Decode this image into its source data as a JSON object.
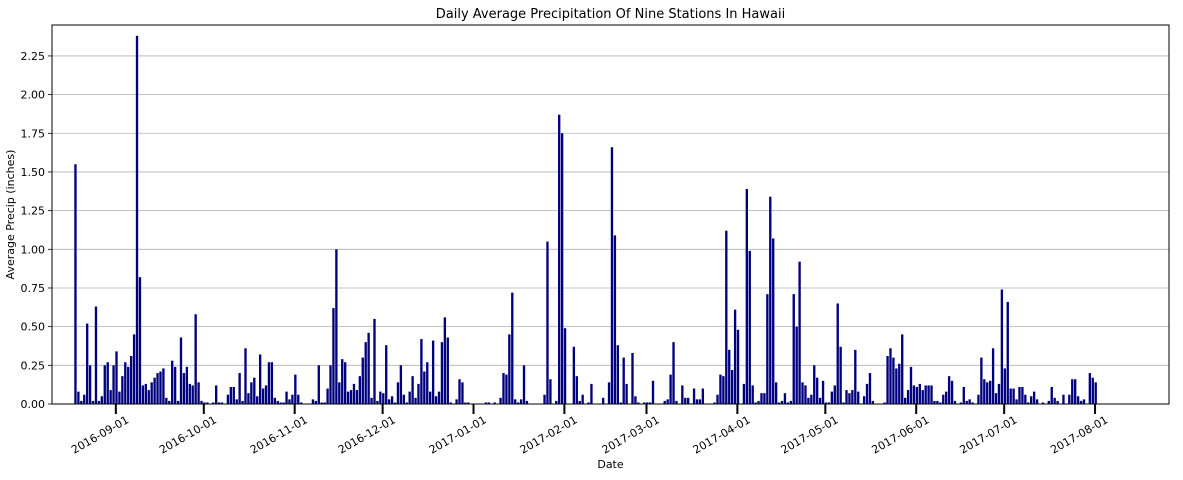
{
  "chart_data": {
    "type": "bar",
    "title": "Daily Average Precipitation Of Nine Stations In Hawaii",
    "xlabel": "Date",
    "ylabel": "Average Precip (inches)",
    "ylim": [
      0,
      2.45
    ],
    "grid": "y",
    "bar_color": "#00007f",
    "yticks": [
      "0.00",
      "0.25",
      "0.50",
      "0.75",
      "1.00",
      "1.25",
      "1.50",
      "1.75",
      "2.00",
      "2.25"
    ],
    "xtick_labels": [
      "2016-09-01",
      "2016-10-01",
      "2016-11-01",
      "2016-12-01",
      "2017-01-01",
      "2017-02-01",
      "2017-03-01",
      "2017-04-01",
      "2017-05-01",
      "2017-06-01",
      "2017-07-01",
      "2017-08-01"
    ],
    "xlim": [
      "2016-08-15",
      "2017-08-31"
    ],
    "series": [
      {
        "x_start": "2016-08-23",
        "values": [
          1.55,
          0.08,
          0.02,
          0.06,
          0.52,
          0.25,
          0.02,
          0.63,
          0.02,
          0.05,
          0.25,
          0.27,
          0.09,
          0.25,
          0.34,
          0.08,
          0.18,
          0.27,
          0.24,
          0.31,
          0.45,
          2.38,
          0.82,
          0.12,
          0.13,
          0.09,
          0.14,
          0.17,
          0.2,
          0.21,
          0.23,
          0.04,
          0.02,
          0.28,
          0.24,
          0.02,
          0.43,
          0.2,
          0.24,
          0.13,
          0.12,
          0.58,
          0.14,
          0.02,
          0.01,
          0.01,
          0.0,
          0.01,
          0.12,
          0.01,
          0.01,
          0.0,
          0.06,
          0.11,
          0.11,
          0.03,
          0.2,
          0.02,
          0.36,
          0.07,
          0.14,
          0.17,
          0.05,
          0.32,
          0.1,
          0.12,
          0.27,
          0.27,
          0.04,
          0.02,
          0.01,
          0.01,
          0.08,
          0.03,
          0.06,
          0.19,
          0.06,
          0.01,
          0.0,
          0.0,
          0.0,
          0.03,
          0.02,
          0.25,
          0.01,
          0.01,
          0.1,
          0.25,
          0.62,
          1.0,
          0.14,
          0.29,
          0.27,
          0.08,
          0.09,
          0.13,
          0.09,
          0.18,
          0.3,
          0.4,
          0.46,
          0.04,
          0.55,
          0.02,
          0.08,
          0.07,
          0.38,
          0.03,
          0.05,
          0.01,
          0.14,
          0.25,
          0.06,
          0.01,
          0.08,
          0.18,
          0.04,
          0.13,
          0.42,
          0.21,
          0.27,
          0.08,
          0.41,
          0.05,
          0.08,
          0.4,
          0.56,
          0.43,
          0.01,
          0.0,
          0.03,
          0.16,
          0.14,
          0.01,
          0.01,
          0.0,
          0.0,
          0.0,
          0.0,
          0.0,
          0.01,
          0.01,
          0.0,
          0.01,
          0.0,
          0.04,
          0.2,
          0.19,
          0.45,
          0.72,
          0.03,
          0.01,
          0.03,
          0.25,
          0.02,
          0.0,
          0.0,
          0.0,
          0.0,
          0.0,
          0.06,
          1.05,
          0.16,
          0.0,
          0.02,
          1.87,
          1.75,
          0.49,
          0.0,
          0.0,
          0.37,
          0.18,
          0.02,
          0.06,
          0.0,
          0.01,
          0.13,
          0.0,
          0.0,
          0.0,
          0.04,
          0.0,
          0.14,
          1.66,
          1.09,
          0.38,
          0.01,
          0.3,
          0.13,
          0.0,
          0.33,
          0.05,
          0.01,
          0.0,
          0.01,
          0.01,
          0.01,
          0.15,
          0.0,
          0.0,
          0.0,
          0.02,
          0.03,
          0.19,
          0.4,
          0.02,
          0.0,
          0.12,
          0.04,
          0.04,
          0.0,
          0.1,
          0.03,
          0.03,
          0.1,
          0.0,
          0.0,
          0.0,
          0.01,
          0.06,
          0.19,
          0.18,
          1.12,
          0.35,
          0.22,
          0.61,
          0.48,
          0.0,
          0.13,
          1.39,
          0.99,
          0.12,
          0.01,
          0.02,
          0.07,
          0.07,
          0.71,
          1.34,
          1.07,
          0.14,
          0.01,
          0.02,
          0.07,
          0.01,
          0.02,
          0.71,
          0.5,
          0.92,
          0.14,
          0.12,
          0.04,
          0.06,
          0.25,
          0.17,
          0.04,
          0.15,
          0.01,
          0.01,
          0.08,
          0.12,
          0.65,
          0.37,
          0.01,
          0.09,
          0.07,
          0.09,
          0.35,
          0.08,
          0.0,
          0.05,
          0.13,
          0.2,
          0.02,
          0.0,
          0.0,
          0.0,
          0.01,
          0.31,
          0.36,
          0.3,
          0.23,
          0.26,
          0.45,
          0.04,
          0.09,
          0.24,
          0.12,
          0.11,
          0.13,
          0.09,
          0.12,
          0.12,
          0.12,
          0.02,
          0.02,
          0.01,
          0.06,
          0.08,
          0.18,
          0.15,
          0.02,
          0.0,
          0.01,
          0.11,
          0.02,
          0.03,
          0.01,
          0.0,
          0.06,
          0.3,
          0.16,
          0.14,
          0.15,
          0.36,
          0.07,
          0.13,
          0.74,
          0.23,
          0.66,
          0.1,
          0.1,
          0.03,
          0.11,
          0.11,
          0.06,
          0.01,
          0.05,
          0.08,
          0.03,
          0.0,
          0.01,
          0.0,
          0.02,
          0.11,
          0.04,
          0.02,
          0.0,
          0.06,
          0.0,
          0.06,
          0.16,
          0.16,
          0.05,
          0.02,
          0.03,
          0.0,
          0.2,
          0.17,
          0.14
        ]
      }
    ]
  }
}
